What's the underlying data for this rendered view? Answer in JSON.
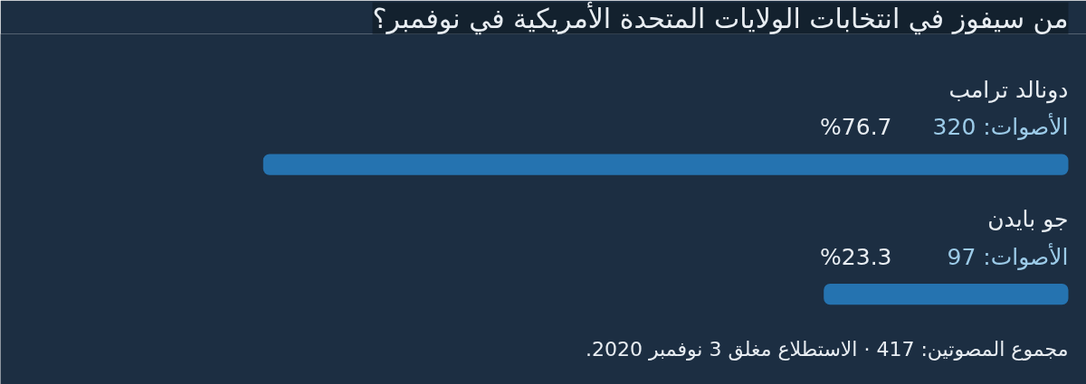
{
  "chart_data": {
    "type": "bar",
    "orientation": "horizontal",
    "title": "من سيفوز في انتخابات الولايات المتحدة الأمريكية في نوفمبر؟",
    "categories": [
      "دونالد ترامب",
      "جو بايدن"
    ],
    "values": [
      76.7,
      23.3
    ],
    "value_labels": [
      "%76.7",
      "%23.3"
    ],
    "color": "#2573b0",
    "grid": false,
    "annotations": [
      "الأصوات: 320",
      "الأصوات: 97",
      "مجموع المصوتين: 417 · الاستطلاع مغلق 3 نوفمبر 2020."
    ]
  }
}
